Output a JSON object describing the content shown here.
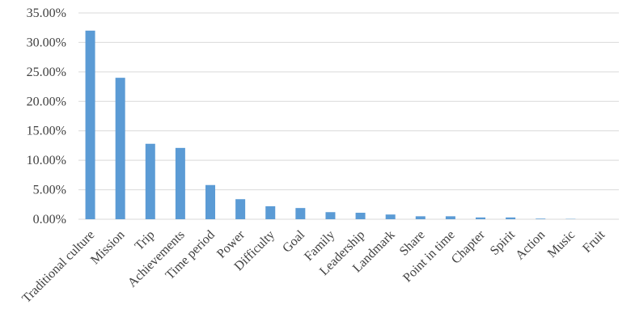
{
  "chart_data": {
    "type": "bar",
    "categories": [
      "Traditional culture",
      "Mission",
      "Trip",
      "Achievements",
      "Time period",
      "Power",
      "Difficulty",
      "Goal",
      "Family",
      "Leadership",
      "Landmark",
      "Share",
      "Point in time",
      "Chapter",
      "Spirit",
      "Action",
      "Music",
      "Fruit"
    ],
    "values": [
      32,
      24,
      12.8,
      12.1,
      5.8,
      3.4,
      2.2,
      1.9,
      1.2,
      1.1,
      0.8,
      0.5,
      0.5,
      0.3,
      0.3,
      0.1,
      0.05,
      0
    ],
    "color": "#5b9bd5",
    "ylim": [
      0,
      35
    ],
    "yticks": [
      {
        "value": 0,
        "label": "0.00%"
      },
      {
        "value": 5,
        "label": "5.00%"
      },
      {
        "value": 10,
        "label": "10.00%"
      },
      {
        "value": 15,
        "label": "15.00%"
      },
      {
        "value": 20,
        "label": "20.00%"
      },
      {
        "value": 25,
        "label": "25.00%"
      },
      {
        "value": 30,
        "label": "30.00%"
      },
      {
        "value": 35,
        "label": "35.00%"
      }
    ],
    "grid": true
  }
}
